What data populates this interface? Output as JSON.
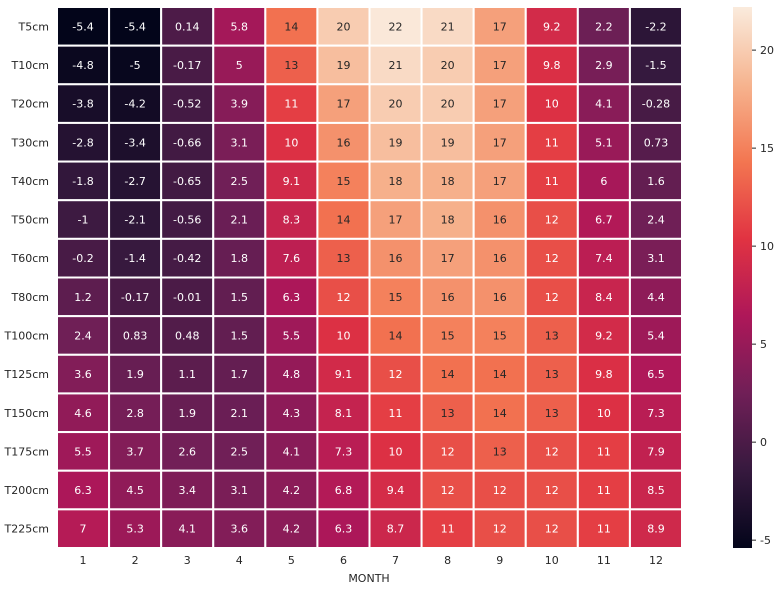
{
  "chart_data": {
    "type": "heatmap",
    "title": "",
    "xlabel": "MONTH",
    "ylabel": "",
    "x_categories": [
      "1",
      "2",
      "3",
      "4",
      "5",
      "6",
      "7",
      "8",
      "9",
      "10",
      "11",
      "12"
    ],
    "y_categories": [
      "T5cm",
      "T10cm",
      "T20cm",
      "T30cm",
      "T40cm",
      "T50cm",
      "T60cm",
      "T80cm",
      "T100cm",
      "T125cm",
      "T150cm",
      "T175cm",
      "T200cm",
      "T225cm"
    ],
    "cell_labels": [
      [
        "-5.4",
        "-5.4",
        "0.14",
        "5.8",
        "14",
        "20",
        "22",
        "21",
        "17",
        "9.2",
        "2.2",
        "-2.2"
      ],
      [
        "-4.8",
        "-5",
        "-0.17",
        "5",
        "13",
        "19",
        "21",
        "20",
        "17",
        "9.8",
        "2.9",
        "-1.5"
      ],
      [
        "-3.8",
        "-4.2",
        "-0.52",
        "3.9",
        "11",
        "17",
        "20",
        "20",
        "17",
        "10",
        "4.1",
        "-0.28"
      ],
      [
        "-2.8",
        "-3.4",
        "-0.66",
        "3.1",
        "10",
        "16",
        "19",
        "19",
        "17",
        "11",
        "5.1",
        "0.73"
      ],
      [
        "-1.8",
        "-2.7",
        "-0.65",
        "2.5",
        "9.1",
        "15",
        "18",
        "18",
        "17",
        "11",
        "6",
        "1.6"
      ],
      [
        "-1",
        "-2.1",
        "-0.56",
        "2.1",
        "8.3",
        "14",
        "17",
        "18",
        "16",
        "12",
        "6.7",
        "2.4"
      ],
      [
        "-0.2",
        "-1.4",
        "-0.42",
        "1.8",
        "7.6",
        "13",
        "16",
        "17",
        "16",
        "12",
        "7.4",
        "3.1"
      ],
      [
        "1.2",
        "-0.17",
        "-0.01",
        "1.5",
        "6.3",
        "12",
        "15",
        "16",
        "16",
        "12",
        "8.4",
        "4.4"
      ],
      [
        "2.4",
        "0.83",
        "0.48",
        "1.5",
        "5.5",
        "10",
        "14",
        "15",
        "15",
        "13",
        "9.2",
        "5.4"
      ],
      [
        "3.6",
        "1.9",
        "1.1",
        "1.7",
        "4.8",
        "9.1",
        "12",
        "14",
        "14",
        "13",
        "9.8",
        "6.5"
      ],
      [
        "4.6",
        "2.8",
        "1.9",
        "2.1",
        "4.3",
        "8.1",
        "11",
        "13",
        "14",
        "13",
        "10",
        "7.3"
      ],
      [
        "5.5",
        "3.7",
        "2.6",
        "2.5",
        "4.1",
        "7.3",
        "10",
        "12",
        "13",
        "12",
        "11",
        "7.9"
      ],
      [
        "6.3",
        "4.5",
        "3.4",
        "3.1",
        "4.2",
        "6.8",
        "9.4",
        "12",
        "12",
        "12",
        "11",
        "8.5"
      ],
      [
        "7",
        "5.3",
        "4.1",
        "3.6",
        "4.2",
        "6.3",
        "8.7",
        "11",
        "12",
        "12",
        "11",
        "8.9"
      ]
    ],
    "value_range": [
      -5.4,
      22.2
    ],
    "colorbar_ticks": [
      "-5",
      "0",
      "5",
      "10",
      "15",
      "20"
    ],
    "colormap": "rocket",
    "colormap_stops": [
      "#03051a",
      "#36193e",
      "#701f57",
      "#ae1759",
      "#e13342",
      "#f37651",
      "#f6b48f",
      "#faebdd"
    ],
    "cell_separator_color": "#ffffff",
    "grid": false
  }
}
